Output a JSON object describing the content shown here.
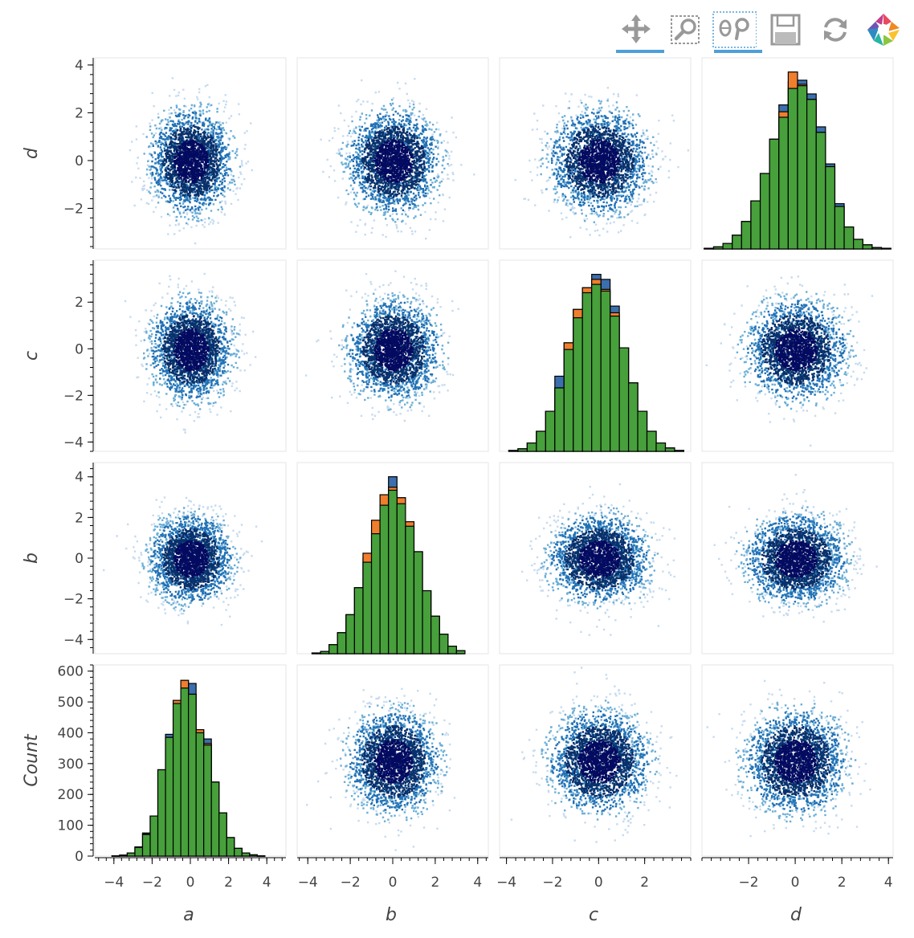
{
  "toolbar": {
    "tools": [
      {
        "name": "pan-tool",
        "icon": "pan-icon",
        "active": true
      },
      {
        "name": "box-zoom-tool",
        "icon": "box-zoom-icon",
        "active": false
      },
      {
        "name": "wheel-zoom-tool",
        "icon": "wheel-zoom-icon",
        "active": true
      },
      {
        "name": "save-tool",
        "icon": "save-icon",
        "active": false
      },
      {
        "name": "reset-tool",
        "icon": "reset-icon",
        "active": false
      },
      {
        "name": "bokeh-logo",
        "icon": "bokeh-logo-icon",
        "active": false
      }
    ]
  },
  "chart_data": {
    "type": "scatter",
    "layout": "scatter matrix",
    "variables": [
      "a",
      "b",
      "c",
      "d"
    ],
    "row_order": [
      "d",
      "c",
      "b",
      "Count"
    ],
    "col_order": [
      "a",
      "b",
      "c",
      "d"
    ],
    "xlabels": [
      "a",
      "b",
      "c",
      "d"
    ],
    "ylabels": [
      "d",
      "c",
      "b",
      "Count"
    ],
    "xlims": {
      "a": [
        -5,
        5
      ],
      "b": [
        -4.5,
        4.5
      ],
      "c": [
        -4.3,
        4
      ],
      "d": [
        -4,
        4.2
      ]
    },
    "ylims": {
      "d": [
        -3.7,
        4.3
      ],
      "c": [
        -4.4,
        3.8
      ],
      "b": [
        -4.7,
        4.7
      ],
      "Count": [
        0,
        620
      ]
    },
    "xticks": {
      "a": [
        -4,
        -2,
        0,
        2,
        4
      ],
      "b": [
        -4,
        -2,
        0,
        2,
        4
      ],
      "c": [
        -4,
        -2,
        0,
        2
      ],
      "d": [
        -2,
        0,
        2,
        4
      ]
    },
    "yticks": {
      "d": [
        -2,
        0,
        2,
        4
      ],
      "c": [
        -4,
        -2,
        0,
        2
      ],
      "b": [
        -4,
        -2,
        0,
        2,
        4
      ],
      "Count": [
        0,
        100,
        200,
        300,
        400,
        500,
        600
      ]
    },
    "tick_labels_x": {
      "a": [
        "−4",
        "−2",
        "0",
        "2",
        "4"
      ],
      "b": [
        "−4",
        "−2",
        "0",
        "2",
        "4"
      ],
      "c": [
        "−4",
        "−2",
        "0",
        "2"
      ],
      "d": [
        "−2",
        "0",
        "2",
        "4"
      ]
    },
    "tick_labels_y": {
      "d": [
        "−2",
        "0",
        "2",
        "4"
      ],
      "c": [
        "−4",
        "−2",
        "0",
        "2"
      ],
      "b": [
        "−4",
        "−2",
        "0",
        "2",
        "4"
      ],
      "Count": [
        "0",
        "100",
        "200",
        "300",
        "400",
        "500",
        "600"
      ]
    },
    "offdiag": {
      "kind": "2d-density",
      "center": [
        0,
        0
      ],
      "std": 1,
      "colormap": [
        "#c6dbef",
        "#6baed6",
        "#2171b5",
        "#08306b",
        "#030a60"
      ]
    },
    "hist_series": [
      {
        "name": "",
        "color": "#3b6fae"
      },
      {
        "name": "",
        "color": "#ef7e2d"
      },
      {
        "name": "",
        "color": "#47a03b"
      }
    ],
    "hist": {
      "a": {
        "edges": [
          -4.1,
          -3.7,
          -3.3,
          -2.9,
          -2.5,
          -2.1,
          -1.7,
          -1.3,
          -0.9,
          -0.5,
          -0.1,
          0.3,
          0.7,
          1.1,
          1.5,
          1.9,
          2.3,
          2.7,
          3.1,
          3.5,
          3.9
        ],
        "blue": [
          1,
          3,
          10,
          30,
          75,
          130,
          280,
          395,
          505,
          570,
          560,
          410,
          380,
          240,
          140,
          60,
          25,
          10,
          4,
          1
        ],
        "orange": [
          1,
          3,
          10,
          28,
          72,
          130,
          280,
          385,
          505,
          570,
          525,
          410,
          365,
          240,
          140,
          60,
          25,
          10,
          4,
          1
        ],
        "green": [
          1,
          3,
          10,
          28,
          70,
          130,
          280,
          385,
          495,
          545,
          525,
          400,
          360,
          240,
          140,
          60,
          25,
          10,
          4,
          1
        ]
      },
      "b": {
        "edges": [
          -3.8,
          -3.4,
          -3.0,
          -2.6,
          -2.2,
          -1.8,
          -1.4,
          -1.0,
          -0.6,
          -0.2,
          0.2,
          0.6,
          1.0,
          1.4,
          1.8,
          2.2,
          2.6,
          3.0,
          3.4
        ],
        "blue": [
          0.05,
          0.15,
          0.6,
          1.4,
          2.6,
          4.4,
          6.4,
          8.2,
          9.8,
          11.8,
          10.4,
          8.4,
          6.8,
          4.2,
          2.5,
          1.3,
          0.5,
          0.2
        ],
        "orange": [
          0.05,
          0.15,
          0.6,
          1.4,
          2.6,
          4.4,
          6.7,
          8.9,
          10.6,
          11.1,
          10.4,
          8.8,
          6.8,
          4.2,
          2.5,
          1.3,
          0.5,
          0.2
        ],
        "green": [
          0.05,
          0.15,
          0.6,
          1.4,
          2.6,
          4.4,
          6.1,
          8.0,
          9.9,
          10.9,
          10.0,
          8.5,
          6.8,
          4.2,
          2.5,
          1.3,
          0.5,
          0.2
        ]
      },
      "c": {
        "edges": [
          -3.9,
          -3.5,
          -3.1,
          -2.7,
          -2.3,
          -1.9,
          -1.5,
          -1.1,
          -0.7,
          -0.3,
          0.1,
          0.5,
          0.9,
          1.3,
          1.7,
          2.1,
          2.5,
          2.9,
          3.3,
          3.7
        ],
        "blue": [
          0.05,
          0.15,
          0.5,
          1.2,
          2.4,
          4.5,
          6.5,
          8.5,
          9.8,
          10.6,
          10.3,
          8.7,
          6.2,
          4.1,
          2.4,
          1.2,
          0.5,
          0.2,
          0.05
        ],
        "orange": [
          0.05,
          0.15,
          0.5,
          1.2,
          2.4,
          3.8,
          6.5,
          8.5,
          9.8,
          10.3,
          9.7,
          8.3,
          6.2,
          4.1,
          2.4,
          1.2,
          0.5,
          0.2,
          0.05
        ],
        "green": [
          0.05,
          0.15,
          0.5,
          1.2,
          2.4,
          3.8,
          6.1,
          8.0,
          9.5,
          10.0,
          9.6,
          8.1,
          6.2,
          4.1,
          2.4,
          1.2,
          0.5,
          0.2,
          0.05
        ]
      },
      "d": {
        "edges": [
          -3.9,
          -3.5,
          -3.1,
          -2.7,
          -2.3,
          -1.9,
          -1.5,
          -1.1,
          -0.7,
          -0.3,
          0.1,
          0.5,
          0.9,
          1.3,
          1.7,
          2.1,
          2.5,
          2.9,
          3.3,
          3.7,
          4.1
        ],
        "blue": [
          0.05,
          0.15,
          0.4,
          1.0,
          2.0,
          3.5,
          5.5,
          8.0,
          10.5,
          12.2,
          12.3,
          11.3,
          8.9,
          6.2,
          3.3,
          1.6,
          0.7,
          0.3,
          0.1,
          0.05
        ],
        "orange": [
          0.05,
          0.15,
          0.4,
          1.0,
          2.0,
          3.5,
          5.5,
          8.0,
          10.0,
          12.9,
          12.0,
          10.9,
          8.5,
          6.0,
          3.1,
          1.6,
          0.7,
          0.3,
          0.1,
          0.05
        ],
        "green": [
          0.05,
          0.15,
          0.4,
          1.0,
          2.0,
          3.5,
          5.5,
          8.0,
          9.6,
          11.7,
          11.9,
          10.9,
          8.5,
          6.0,
          3.1,
          1.6,
          0.7,
          0.3,
          0.1,
          0.05
        ]
      }
    }
  }
}
